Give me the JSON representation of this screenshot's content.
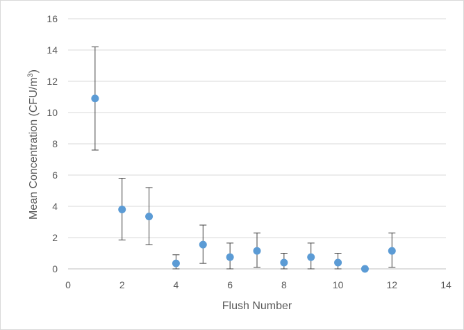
{
  "chart_data": {
    "type": "scatter",
    "title": "",
    "xlabel": "Flush Number",
    "ylabel": "Mean Concentration (CFU/m",
    "ylabel_sup": "3",
    "ylabel_suffix": ")",
    "xlim": [
      0,
      14
    ],
    "ylim": [
      0,
      16
    ],
    "x_ticks": [
      0,
      2,
      4,
      6,
      8,
      10,
      12,
      14
    ],
    "y_ticks": [
      0,
      2,
      4,
      6,
      8,
      10,
      12,
      14,
      16
    ],
    "grid": "horizontal",
    "legend": "none",
    "colors": {
      "marker": "#5B9BD5",
      "error_bar": "#404040",
      "grid": "#d9d9d9",
      "axis": "#bfbfbf",
      "text": "#595959"
    },
    "series": [
      {
        "x": [
          1,
          2,
          3,
          4,
          5,
          6,
          7,
          8,
          9,
          10,
          11,
          12
        ],
        "y": [
          10.9,
          3.8,
          3.35,
          0.35,
          1.55,
          0.75,
          1.15,
          0.4,
          0.75,
          0.4,
          0.0,
          1.15
        ],
        "error_low": [
          7.6,
          1.85,
          1.55,
          0.0,
          0.35,
          0.0,
          0.1,
          0.0,
          0.0,
          0.0,
          0.0,
          0.1
        ],
        "error_high": [
          14.2,
          5.8,
          5.2,
          0.9,
          2.8,
          1.65,
          2.3,
          1.0,
          1.65,
          1.0,
          0.0,
          2.3
        ]
      }
    ]
  }
}
